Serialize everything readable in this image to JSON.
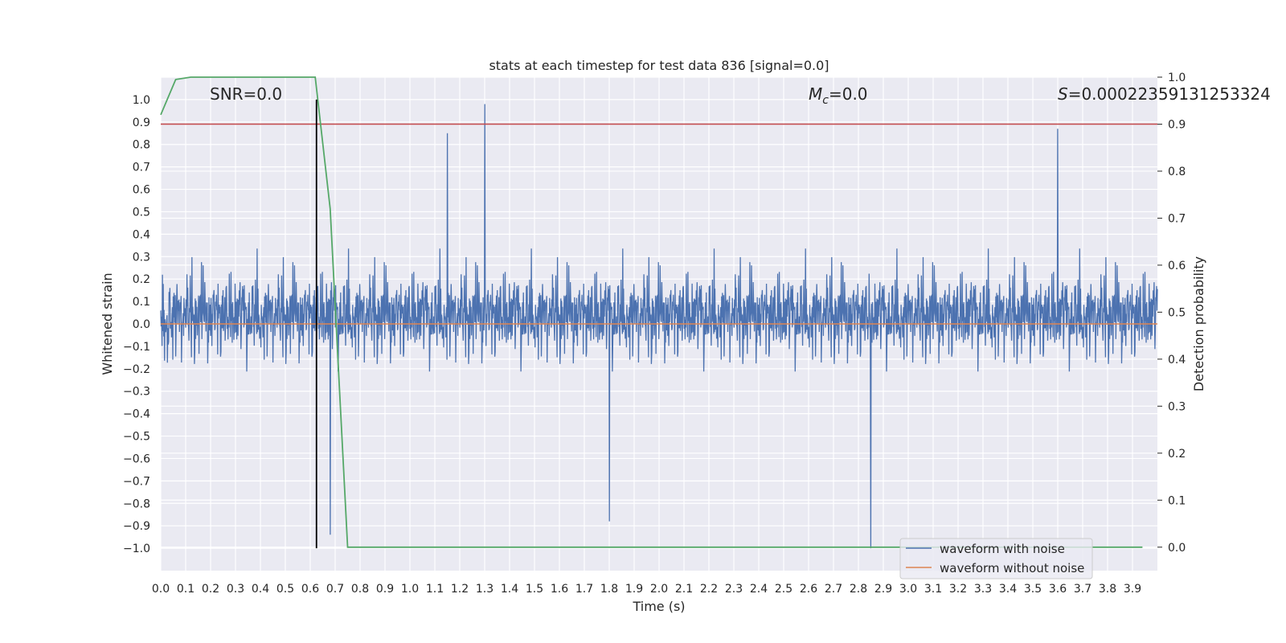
{
  "chart_data": {
    "type": "line",
    "title": "stats at each timestep for test data 836 [signal=0.0]",
    "xlabel": "Time (s)",
    "ylabel": "Whitened strain",
    "y2label": "Detection probability",
    "xlim": [
      0.0,
      4.0
    ],
    "ylim": [
      -1.1,
      1.1
    ],
    "y2lim": [
      -0.05,
      1.0
    ],
    "xticks": [
      0.0,
      0.1,
      0.2,
      0.3,
      0.4,
      0.5,
      0.6,
      0.7,
      0.8,
      0.9,
      1.0,
      1.1,
      1.2,
      1.3,
      1.4,
      1.5,
      1.6,
      1.7,
      1.8,
      1.9,
      2.0,
      2.1,
      2.2,
      2.3,
      2.4,
      2.5,
      2.6,
      2.7,
      2.8,
      2.9,
      3.0,
      3.1,
      3.2,
      3.3,
      3.4,
      3.5,
      3.6,
      3.7,
      3.8,
      3.9
    ],
    "xtick_labels": [
      "0.0",
      "0.1",
      "0.2",
      "0.3",
      "0.4",
      "0.5",
      "0.6",
      "0.7",
      "0.8",
      "0.9",
      "1.0",
      "1.1",
      "1.2",
      "1.3",
      "1.4",
      "1.5",
      "1.6",
      "1.7",
      "1.8",
      "1.9",
      "2.0",
      "2.1",
      "2.2",
      "2.3",
      "2.4",
      "2.5",
      "2.6",
      "2.7",
      "2.8",
      "2.9",
      "3.0",
      "3.1",
      "3.2",
      "3.3",
      "3.4",
      "3.5",
      "3.6",
      "3.7",
      "3.8",
      "3.9"
    ],
    "yticks": [
      1.0,
      0.9,
      0.8,
      0.7,
      0.6,
      0.5,
      0.4,
      0.3,
      0.2,
      0.1,
      0.0,
      -0.1,
      -0.2,
      -0.3,
      -0.4,
      -0.5,
      -0.6,
      -0.7,
      -0.8,
      -0.9,
      -1.0
    ],
    "ytick_labels": [
      "1.0",
      "0.9",
      "0.8",
      "0.7",
      "0.6",
      "0.5",
      "0.4",
      "0.3",
      "0.2",
      "0.1",
      "0.0",
      "−0.1",
      "−0.2",
      "−0.3",
      "−0.4",
      "−0.5",
      "−0.6",
      "−0.7",
      "−0.8",
      "−0.9",
      "−1.0"
    ],
    "y2ticks": [
      1.0,
      0.9,
      0.8,
      0.7,
      0.6,
      0.5,
      0.4,
      0.3,
      0.2,
      0.1,
      0.0
    ],
    "y2tick_labels": [
      "1.0",
      "0.9",
      "0.8",
      "0.7",
      "0.6",
      "0.5",
      "0.4",
      "0.3",
      "0.2",
      "0.1",
      "0.0"
    ],
    "annotations": {
      "snr": "SNR=0.0",
      "mc_symbol": "M",
      "mc_sub": "c",
      "mc_value": "=0.0",
      "s_symbol": "S",
      "s_value": "=0.00022359131253324"
    },
    "series": [
      {
        "name": "waveform with noise",
        "color": "#4c72b0",
        "axis": "left",
        "description": "whitened noise, approx. uniform amplitude",
        "typical_range": [
          -0.6,
          0.6
        ],
        "extreme_peaks": [
          {
            "x": 1.3,
            "y": 0.98
          },
          {
            "x": 3.6,
            "y": 0.87
          },
          {
            "x": 1.15,
            "y": 0.85
          },
          {
            "x": 1.8,
            "y": -0.88
          },
          {
            "x": 2.85,
            "y": -1.0
          },
          {
            "x": 0.68,
            "y": -0.94
          }
        ]
      },
      {
        "name": "waveform without noise",
        "color": "#dd8452",
        "axis": "left",
        "values_constant": 0.0
      },
      {
        "name": "detection probability",
        "color": "#55a868",
        "axis": "right",
        "x": [
          0.0,
          0.06,
          0.12,
          0.62,
          0.68,
          0.75,
          1.0,
          3.94
        ],
        "y": [
          0.92,
          0.995,
          1.0,
          1.0,
          0.72,
          0.0,
          0.0,
          0.0
        ]
      },
      {
        "name": "threshold",
        "color": "#c44e52",
        "axis": "right",
        "values_constant": 0.9
      }
    ],
    "vline": {
      "x": 0.625,
      "y_from": -1.0,
      "y_to": 1.0,
      "color": "#000000"
    },
    "legend": {
      "position": "lower-right",
      "entries": [
        {
          "label": "waveform with noise",
          "color": "#4c72b0"
        },
        {
          "label": "waveform without noise",
          "color": "#dd8452"
        }
      ]
    },
    "style": {
      "face": "#eaeaf2",
      "grid": "#ffffff"
    }
  }
}
